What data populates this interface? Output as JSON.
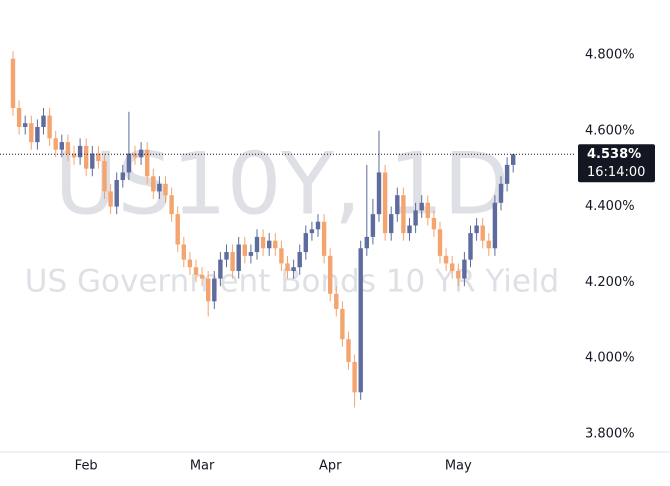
{
  "chart_data": {
    "type": "candlestick",
    "title": "US10Y, 1D",
    "subtitle": "US Government Bonds 10 YR Yield",
    "up_color": "#5d6b9e",
    "down_color": "#f4a46e",
    "categories": [
      null,
      null,
      null,
      null,
      null,
      null,
      null,
      null,
      null,
      null,
      null,
      null,
      "Feb",
      null,
      null,
      null,
      null,
      null,
      null,
      null,
      null,
      null,
      null,
      null,
      null,
      null,
      null,
      null,
      null,
      null,
      null,
      "Mar",
      null,
      null,
      null,
      null,
      null,
      null,
      null,
      null,
      null,
      null,
      null,
      null,
      null,
      null,
      null,
      null,
      null,
      null,
      null,
      null,
      "Apr",
      null,
      null,
      null,
      null,
      null,
      null,
      null,
      null,
      null,
      null,
      null,
      null,
      null,
      null,
      null,
      null,
      null,
      null,
      null,
      null,
      "May",
      null,
      null,
      null,
      null,
      null,
      null,
      null,
      null,
      null
    ],
    "open": [
      4.79,
      4.66,
      4.61,
      4.62,
      4.57,
      4.61,
      4.64,
      4.58,
      4.55,
      4.57,
      4.54,
      4.53,
      4.56,
      4.5,
      4.54,
      4.52,
      4.44,
      4.4,
      4.47,
      4.49,
      4.54,
      4.53,
      4.55,
      4.48,
      4.44,
      4.46,
      4.43,
      4.38,
      4.3,
      4.26,
      4.24,
      4.22,
      4.21,
      4.15,
      4.21,
      4.26,
      4.28,
      4.23,
      4.3,
      4.27,
      4.28,
      4.32,
      4.29,
      4.31,
      4.29,
      4.25,
      4.23,
      4.24,
      4.28,
      4.33,
      4.34,
      4.36,
      4.27,
      4.17,
      4.13,
      4.05,
      3.99,
      3.91,
      4.29,
      4.32,
      4.38,
      4.49,
      4.33,
      4.38,
      4.43,
      4.33,
      4.35,
      4.39,
      4.41,
      4.37,
      4.34,
      4.27,
      4.25,
      4.23,
      4.21,
      4.26,
      4.33,
      4.35,
      4.31,
      4.29,
      4.41,
      4.46,
      4.51
    ],
    "high": [
      4.81,
      4.68,
      4.64,
      4.64,
      4.63,
      4.66,
      4.66,
      4.6,
      4.59,
      4.59,
      4.56,
      4.58,
      4.58,
      4.56,
      4.56,
      4.54,
      4.46,
      4.49,
      4.51,
      4.65,
      4.56,
      4.57,
      4.57,
      4.5,
      4.48,
      4.48,
      4.45,
      4.4,
      4.32,
      4.28,
      4.26,
      4.24,
      4.23,
      4.23,
      4.28,
      4.3,
      4.3,
      4.32,
      4.32,
      4.3,
      4.34,
      4.34,
      4.33,
      4.33,
      4.31,
      4.27,
      4.26,
      4.3,
      4.35,
      4.36,
      4.38,
      4.38,
      4.29,
      4.19,
      4.15,
      4.07,
      4.01,
      4.31,
      4.51,
      4.42,
      4.6,
      4.51,
      4.4,
      4.45,
      4.45,
      4.37,
      4.41,
      4.43,
      4.43,
      4.39,
      4.36,
      4.29,
      4.27,
      4.25,
      4.28,
      4.35,
      4.37,
      4.37,
      4.33,
      4.43,
      4.48,
      4.53,
      4.54
    ],
    "low": [
      4.64,
      4.59,
      4.59,
      4.55,
      4.55,
      4.59,
      4.56,
      4.53,
      4.53,
      4.52,
      4.51,
      4.51,
      4.48,
      4.48,
      4.5,
      4.42,
      4.38,
      4.38,
      4.45,
      4.47,
      4.51,
      4.51,
      4.46,
      4.42,
      4.42,
      4.41,
      4.36,
      4.28,
      4.24,
      4.22,
      4.2,
      4.19,
      4.11,
      4.13,
      4.19,
      4.24,
      4.21,
      4.21,
      4.25,
      4.25,
      4.26,
      4.27,
      4.27,
      4.27,
      4.23,
      4.21,
      4.21,
      4.22,
      4.26,
      4.31,
      4.32,
      4.25,
      4.15,
      4.11,
      4.03,
      3.97,
      3.87,
      3.89,
      4.27,
      4.3,
      4.36,
      4.31,
      4.31,
      4.36,
      4.31,
      4.31,
      4.33,
      4.37,
      4.35,
      4.32,
      4.25,
      4.23,
      4.21,
      4.19,
      4.19,
      4.24,
      4.31,
      4.29,
      4.27,
      4.27,
      4.39,
      4.44,
      4.49
    ],
    "close": [
      4.66,
      4.61,
      4.62,
      4.57,
      4.61,
      4.64,
      4.58,
      4.55,
      4.57,
      4.54,
      4.53,
      4.56,
      4.5,
      4.54,
      4.52,
      4.44,
      4.4,
      4.47,
      4.49,
      4.54,
      4.53,
      4.55,
      4.48,
      4.44,
      4.46,
      4.43,
      4.38,
      4.3,
      4.26,
      4.24,
      4.22,
      4.21,
      4.15,
      4.21,
      4.26,
      4.28,
      4.23,
      4.3,
      4.27,
      4.28,
      4.32,
      4.29,
      4.31,
      4.29,
      4.25,
      4.23,
      4.24,
      4.28,
      4.33,
      4.34,
      4.36,
      4.27,
      4.17,
      4.13,
      4.05,
      3.99,
      3.91,
      4.29,
      4.32,
      4.38,
      4.49,
      4.33,
      4.38,
      4.43,
      4.33,
      4.35,
      4.39,
      4.41,
      4.37,
      4.34,
      4.27,
      4.25,
      4.23,
      4.21,
      4.26,
      4.33,
      4.35,
      4.31,
      4.29,
      4.41,
      4.46,
      4.51,
      4.538
    ],
    "ylim": [
      3.7525,
      4.945
    ],
    "yticks": [
      {
        "value": 3.8,
        "label": "3.800%"
      },
      {
        "value": 4.0,
        "label": "4.000%"
      },
      {
        "value": 4.2,
        "label": "4.200%"
      },
      {
        "value": 4.4,
        "label": "4.400%"
      },
      {
        "value": 4.6,
        "label": "4.600%"
      },
      {
        "value": 4.8,
        "label": "4.800%"
      }
    ],
    "grid": false,
    "last_price": {
      "value": 4.538,
      "label": "4.538%"
    },
    "last_time": "16:14:00"
  }
}
